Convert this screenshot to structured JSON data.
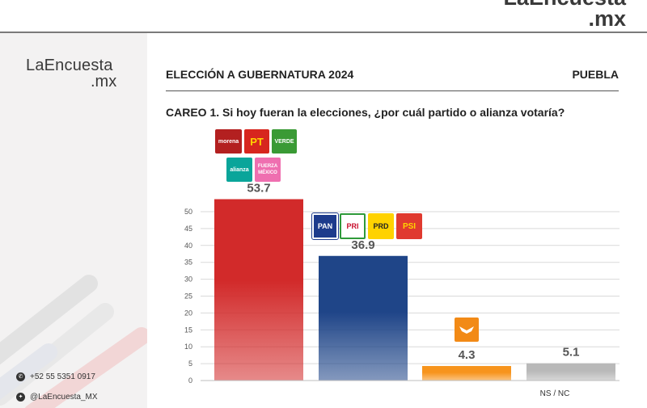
{
  "brand": {
    "name_line1": "LaEncuesta",
    "name_line2": ".mx"
  },
  "top_logo": {
    "line1": "LaEncuesta",
    "line2": ".mx"
  },
  "header": {
    "title": "ELECCIÓN A GUBERNATURA 2024",
    "region": "PUEBLA"
  },
  "question": "CAREO 1. Si hoy fueran la elecciones, ¿por cuál partido o alianza votaría?",
  "contact": {
    "phone": "+52 55 5351 0917",
    "twitter": "@LaEncuesta_MX"
  },
  "party_logos": {
    "morena": "morena",
    "pt": "PT",
    "verde": "VERDE",
    "alianza": "alianza",
    "fuerza": "FUERZA MÉXICO",
    "pan": "PAN",
    "pri": "PRI",
    "prd": "PRD",
    "psi": "PSI"
  },
  "colors": {
    "red": "#d22a2a",
    "blue": "#1f4588",
    "orange": "#f7941d",
    "gray": "#b9b9b9"
  },
  "chart_data": {
    "type": "bar",
    "categories": [
      "Morena-PT-Verde-Nueva Alianza-Fuerza por México",
      "PAN-PRI-PRD-PSI",
      "Movimiento Ciudadano",
      "NS / NC"
    ],
    "category_labels": [
      "",
      "",
      "",
      "NS / NC"
    ],
    "values": [
      53.7,
      36.9,
      4.3,
      5.1
    ],
    "value_labels": [
      "53.7",
      "36.9",
      "4.3",
      "5.1"
    ],
    "bar_colors": [
      "#d22a2a",
      "#1f4588",
      "#f7941d",
      "#b9b9b9"
    ],
    "ylim": [
      0,
      50
    ],
    "yticks": [
      "0",
      "5",
      "10",
      "15",
      "20",
      "25",
      "30",
      "35",
      "40",
      "45",
      "50"
    ],
    "grid": true
  }
}
